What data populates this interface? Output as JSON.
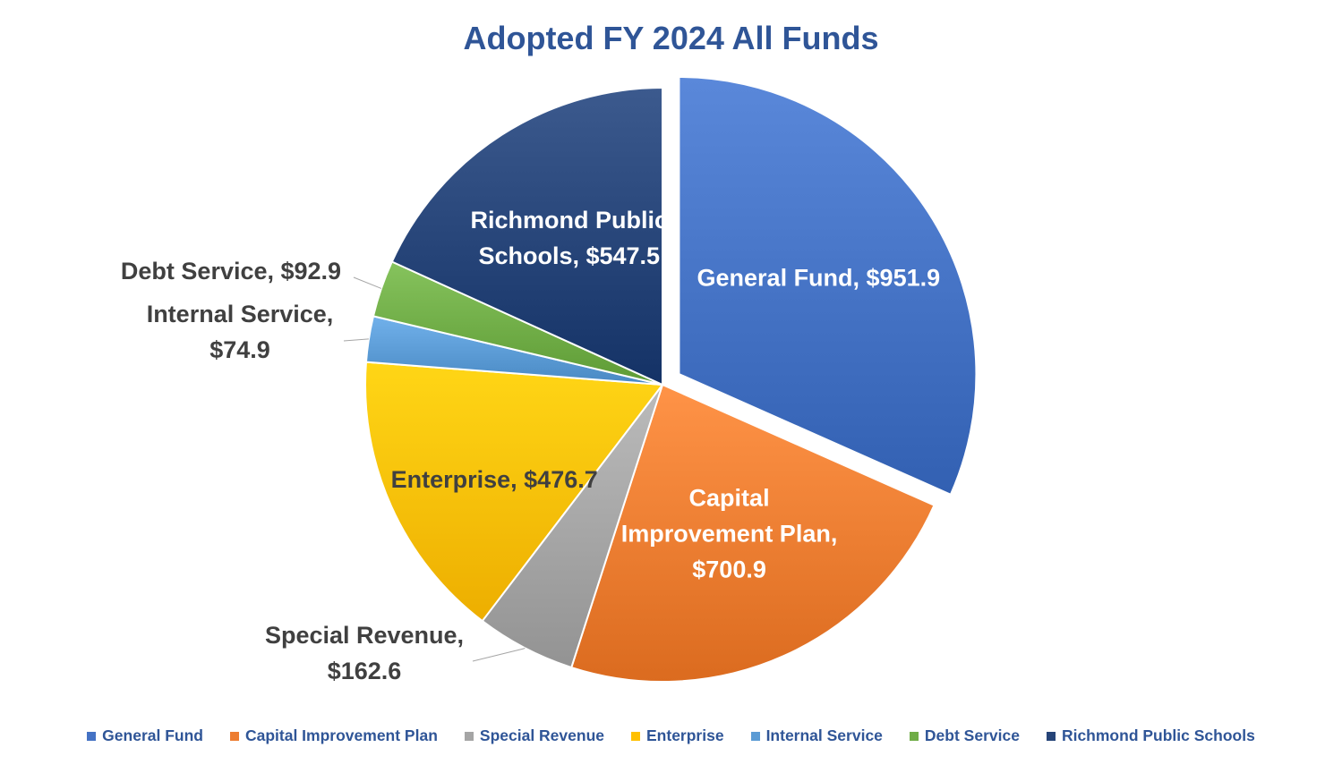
{
  "chart_data": {
    "type": "pie",
    "title": "Adopted FY 2024 All Funds",
    "slices": [
      {
        "name": "General Fund",
        "value": 951.9,
        "color": "#4472c4",
        "label_lines": [
          "General Fund, $951.9"
        ]
      },
      {
        "name": "Capital Improvement Plan",
        "value": 700.9,
        "color": "#ed7d31",
        "label_lines": [
          "Capital",
          "Improvement Plan,",
          "$700.9"
        ]
      },
      {
        "name": "Special Revenue",
        "value": 162.6,
        "color": "#a5a5a5",
        "label_lines": [
          "Special Revenue,",
          "$162.6"
        ]
      },
      {
        "name": "Enterprise",
        "value": 476.7,
        "color": "#ffc000",
        "label_lines": [
          "Enterprise, $476.7"
        ]
      },
      {
        "name": "Internal Service",
        "value": 74.9,
        "color": "#5b9bd5",
        "label_lines": [
          "Internal Service,",
          "$74.9"
        ]
      },
      {
        "name": "Debt Service",
        "value": 92.9,
        "color": "#70ad47",
        "label_lines": [
          "Debt Service, $92.9"
        ]
      },
      {
        "name": "Richmond Public Schools",
        "value": 547.5,
        "color": "#264478",
        "label_lines": [
          "Richmond Public",
          "Schools, $547.5"
        ]
      }
    ],
    "legend_position": "bottom",
    "exploded_slice": "General Fund"
  }
}
